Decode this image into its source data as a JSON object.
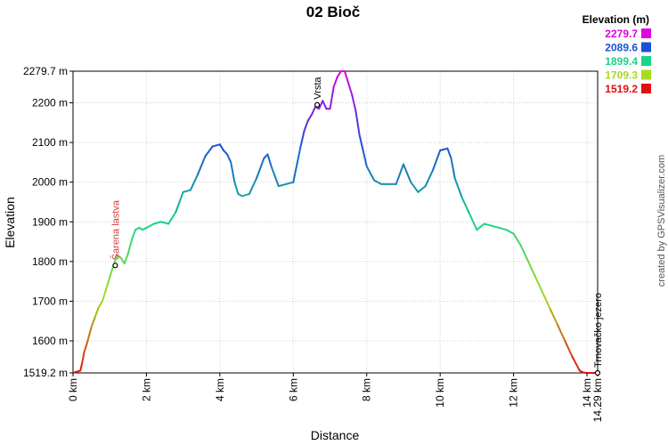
{
  "chart_data": {
    "type": "line",
    "title": "02 Bioč",
    "xlabel": "Distance",
    "ylabel": "Elevation",
    "xlim": [
      0,
      14.29
    ],
    "ylim": [
      1519.2,
      2279.7
    ],
    "x_ticks": [
      {
        "value": 0,
        "label": "0 km"
      },
      {
        "value": 2,
        "label": "2 km"
      },
      {
        "value": 4,
        "label": "4 km"
      },
      {
        "value": 6,
        "label": "6 km"
      },
      {
        "value": 8,
        "label": "8 km"
      },
      {
        "value": 10,
        "label": "10 km"
      },
      {
        "value": 12,
        "label": "12 km"
      },
      {
        "value": 14,
        "label": "14 km"
      },
      {
        "value": 14.29,
        "label": "14.29 km"
      }
    ],
    "y_ticks": [
      {
        "value": 1519.2,
        "label": "1519.2 m"
      },
      {
        "value": 1600,
        "label": "1600 m"
      },
      {
        "value": 1700,
        "label": "1700 m"
      },
      {
        "value": 1800,
        "label": "1800 m"
      },
      {
        "value": 1900,
        "label": "1900 m"
      },
      {
        "value": 2000,
        "label": "2000 m"
      },
      {
        "value": 2100,
        "label": "2100 m"
      },
      {
        "value": 2200,
        "label": "2200 m"
      },
      {
        "value": 2279.7,
        "label": "2279.7 m"
      }
    ],
    "grid": true,
    "legend": {
      "title": "Elevation (m)",
      "placement": "top-right",
      "entries": [
        {
          "label": "2279.7",
          "color": "#e000e0"
        },
        {
          "label": "2089.6",
          "color": "#1a4fd6"
        },
        {
          "label": "1899.4",
          "color": "#19d38a"
        },
        {
          "label": "1709.3",
          "color": "#a6dc1a"
        },
        {
          "label": "1519.2",
          "color": "#e01010"
        }
      ]
    },
    "series": [
      {
        "x": [
          0,
          0.2,
          0.25,
          0.3,
          0.4,
          0.5,
          0.6,
          0.7,
          0.8,
          0.9,
          1.0,
          1.1,
          1.2,
          1.3,
          1.4,
          1.5,
          1.6,
          1.7,
          1.8,
          1.9,
          2.0,
          2.2,
          2.4,
          2.6,
          2.8,
          3.0,
          3.2,
          3.4,
          3.6,
          3.8,
          4.0,
          4.1,
          4.2,
          4.3,
          4.4,
          4.5,
          4.6,
          4.8,
          5.0,
          5.2,
          5.3,
          5.4,
          5.6,
          5.8,
          6.0,
          6.2,
          6.3,
          6.4,
          6.5,
          6.6,
          6.7,
          6.8,
          6.9,
          7.0,
          7.1,
          7.2,
          7.3,
          7.4,
          7.5,
          7.6,
          7.7,
          7.8,
          7.9,
          8.0,
          8.2,
          8.4,
          8.6,
          8.8,
          9.0,
          9.2,
          9.4,
          9.6,
          9.8,
          10.0,
          10.2,
          10.3,
          10.4,
          10.6,
          10.8,
          11.0,
          11.2,
          11.4,
          11.6,
          11.8,
          12.0,
          12.2,
          12.4,
          12.6,
          12.8,
          13.0,
          13.2,
          13.4,
          13.6,
          13.8,
          13.9,
          14.0,
          14.1,
          14.2,
          14.29
        ],
        "y": [
          1519.2,
          1525,
          1545,
          1570,
          1600,
          1635,
          1660,
          1685,
          1700,
          1730,
          1760,
          1790,
          1815,
          1810,
          1795,
          1820,
          1855,
          1880,
          1885,
          1880,
          1885,
          1895,
          1900,
          1895,
          1925,
          1975,
          1980,
          2020,
          2065,
          2090,
          2095,
          2080,
          2070,
          2050,
          2000,
          1970,
          1965,
          1970,
          2010,
          2060,
          2070,
          2040,
          1990,
          1995,
          2000,
          2090,
          2130,
          2155,
          2170,
          2190,
          2185,
          2205,
          2185,
          2185,
          2240,
          2265,
          2279.7,
          2279.7,
          2250,
          2220,
          2180,
          2120,
          2080,
          2040,
          2005,
          1995,
          1995,
          1995,
          2045,
          2000,
          1975,
          1990,
          2030,
          2080,
          2085,
          2060,
          2010,
          1960,
          1920,
          1880,
          1895,
          1890,
          1885,
          1880,
          1870,
          1840,
          1800,
          1760,
          1720,
          1680,
          1640,
          1600,
          1560,
          1525,
          1520,
          1519.2,
          1519.2,
          1519.2,
          1519.2
        ]
      }
    ],
    "waypoints": [
      {
        "x": 1.15,
        "y": 1790,
        "label": "Šarena lastva",
        "color": "#d04040"
      },
      {
        "x": 6.65,
        "y": 2195,
        "label": "Vrsta",
        "color": "#000000"
      },
      {
        "x": 14.29,
        "y": 1519.2,
        "label": "Trnovačko jezero",
        "color": "#000000"
      }
    ],
    "credit": "created by GPSVisualizer.com"
  }
}
